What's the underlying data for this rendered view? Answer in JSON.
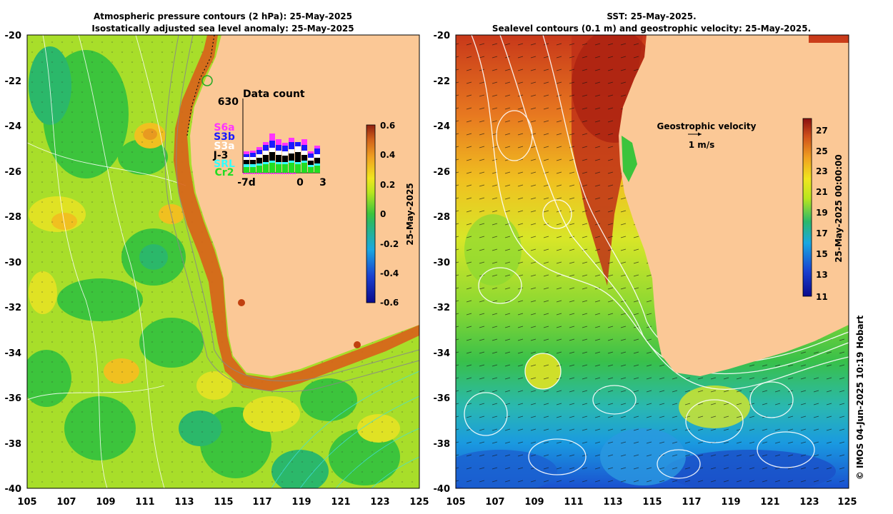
{
  "left_panel": {
    "title_line1": "Atmospheric pressure contours (2 hPa): 25-May-2025",
    "title_line2": "Isostatically adjusted sea level anomaly: 25-May-2025",
    "lat_ticks": [
      "-20",
      "-22",
      "-24",
      "-26",
      "-28",
      "-30",
      "-32",
      "-34",
      "-36",
      "-38",
      "-40"
    ],
    "lon_ticks": [
      "105",
      "107",
      "109",
      "111",
      "113",
      "115",
      "117",
      "119",
      "121",
      "123",
      "125"
    ],
    "colorbar": {
      "ticks": [
        "0.6",
        "0.4",
        "0.2",
        "0",
        "-0.2",
        "-0.4",
        "-0.6"
      ],
      "date_label": "25-May-2025"
    },
    "data_count": {
      "title": "Data count",
      "max_label": "630",
      "missions": [
        {
          "label": "S6a",
          "color": "#ff33ff"
        },
        {
          "label": "S3b",
          "color": "#1a1aff"
        },
        {
          "label": "S3a",
          "color": "#ffffff"
        },
        {
          "label": "J-3",
          "color": "#000000"
        },
        {
          "label": "SRL",
          "color": "#33ffff"
        },
        {
          "label": "Cr2",
          "color": "#22dd22"
        }
      ],
      "x_labels": [
        "-7d",
        "0",
        "3"
      ]
    }
  },
  "right_panel": {
    "title_line1": "SST: 25-May-2025.",
    "title_line2": "Sealevel contours (0.1 m) and geostrophic velocity: 25-May-2025.",
    "lat_ticks": [
      "-20",
      "-22",
      "-24",
      "-26",
      "-28",
      "-30",
      "-32",
      "-34",
      "-36",
      "-38",
      "-40"
    ],
    "lon_ticks": [
      "105",
      "107",
      "109",
      "111",
      "113",
      "115",
      "117",
      "119",
      "121",
      "123",
      "125"
    ],
    "velocity_label": "Geostrophic velocity",
    "velocity_scale": "1 m/s",
    "colorbar": {
      "ticks": [
        "27",
        "25",
        "23",
        "21",
        "19",
        "17",
        "15",
        "13",
        "11"
      ],
      "date_label": "25-May-2025 00:00:00"
    }
  },
  "credit": "© IMOS 04-Jun-2025 10:19 Hobart"
}
